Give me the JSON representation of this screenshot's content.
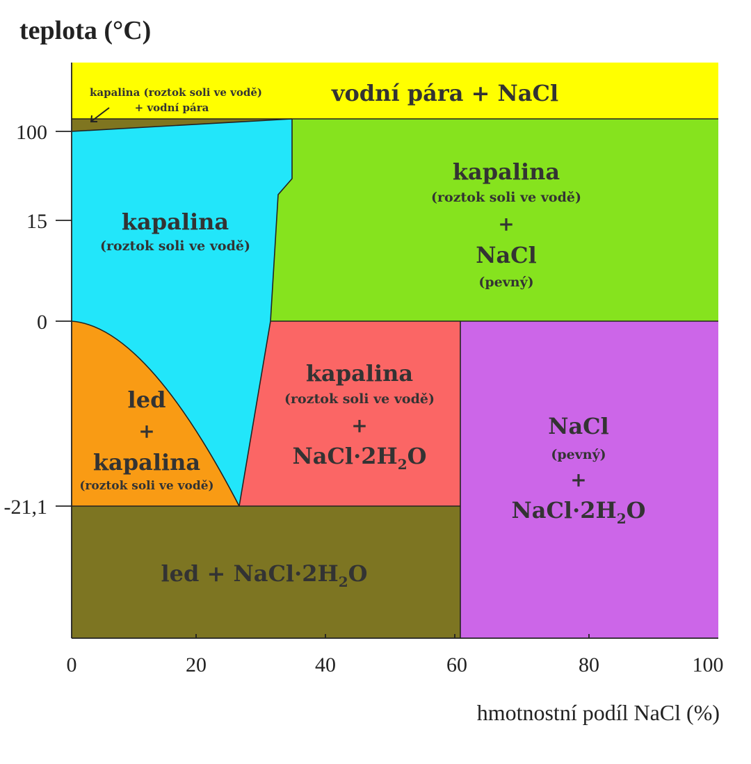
{
  "y_axis_title": "teplota (°C)",
  "x_axis_title": "hmotnostní podíl NaCl (%)",
  "x_ticks": [
    "0",
    "20",
    "40",
    "60",
    "80",
    "100"
  ],
  "y_ticks": [
    "100",
    "15",
    "0",
    "-21,1"
  ],
  "regions": {
    "vapor": {
      "line1": "vodní pára + NaCl",
      "color": "#FFFF00"
    },
    "liquid_vapor": {
      "line1": "kapalina (roztok soli ve vodě)",
      "line2": "+ vodní pára",
      "color": "#7F7520"
    },
    "liquid": {
      "line1": "kapalina",
      "line2": "(roztok soli ve vodě)",
      "color": "#22E6FA"
    },
    "liquid_nacl": {
      "line1": "kapalina",
      "line2": "(roztok soli ve vodě)",
      "line3": "+",
      "line4": "NaCl",
      "line5": "(pevný)",
      "color": "#86E31E"
    },
    "ice_liquid": {
      "line1": "led",
      "line2": "+",
      "line3": "kapalina",
      "line4": "(roztok soli ve vodě)",
      "color": "#F99B14"
    },
    "liquid_dihydrate": {
      "line1": "kapalina",
      "line2": "(roztok soli ve vodě)",
      "line3": "+",
      "line4": "NaCl·2H",
      "line4_sub": "2",
      "line4_end": "O",
      "color": "#FB6665"
    },
    "nacl_dihydrate": {
      "line1": "NaCl",
      "line2": "(pevný)",
      "line3": "+",
      "line4": "NaCl·2H",
      "line4_sub": "2",
      "line4_end": "O",
      "color": "#CC66E8"
    },
    "ice_dihydrate": {
      "line1": "led + NaCl·2H",
      "line1_sub": "2",
      "line1_end": "O",
      "color": "#7D7522"
    }
  }
}
